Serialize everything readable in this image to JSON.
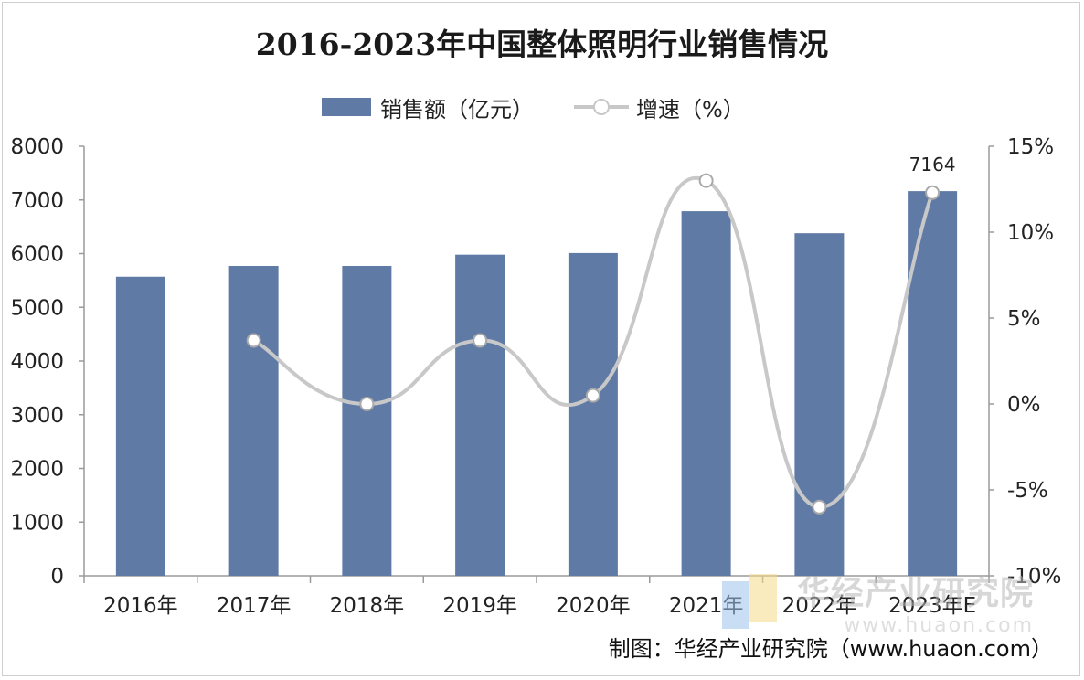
{
  "chart_data": {
    "type": "bar",
    "title": "2016-2023年中国整体照明行业销售情况",
    "categories": [
      "2016年",
      "2017年",
      "2018年",
      "2019年",
      "2020年",
      "2021年",
      "2022年",
      "2023年E"
    ],
    "series": [
      {
        "name": "销售额（亿元）",
        "type": "bar",
        "axis": "left",
        "color": "#5f7aa5",
        "values": [
          5570,
          5770,
          5770,
          5980,
          6010,
          6790,
          6380,
          7164
        ]
      },
      {
        "name": "增速（%）",
        "type": "line",
        "smooth": true,
        "axis": "right",
        "color": "#c8c8c8",
        "values": [
          null,
          3.7,
          0.0,
          3.7,
          0.5,
          13.0,
          -6.0,
          12.3
        ]
      }
    ],
    "data_labels": [
      {
        "category": "2023年E",
        "series": "销售额（亿元）",
        "text": "7164"
      }
    ],
    "y_left": {
      "min": 0,
      "max": 8000,
      "step": 1000,
      "ticks": [
        "0",
        "1000",
        "2000",
        "3000",
        "4000",
        "5000",
        "6000",
        "7000",
        "8000"
      ]
    },
    "y_right": {
      "min": -10,
      "max": 15,
      "step": 5,
      "ticks": [
        "-10%",
        "-5%",
        "0%",
        "5%",
        "10%",
        "15%"
      ]
    },
    "grid": false,
    "legend_position": "top-center"
  },
  "legend": {
    "bar_label": "销售额（亿元）",
    "line_label": "增速（%）"
  },
  "watermark": {
    "name": "华经产业研究院",
    "url": "www.huaon.com"
  },
  "source": "制图：华经产业研究院（www.huaon.com）"
}
